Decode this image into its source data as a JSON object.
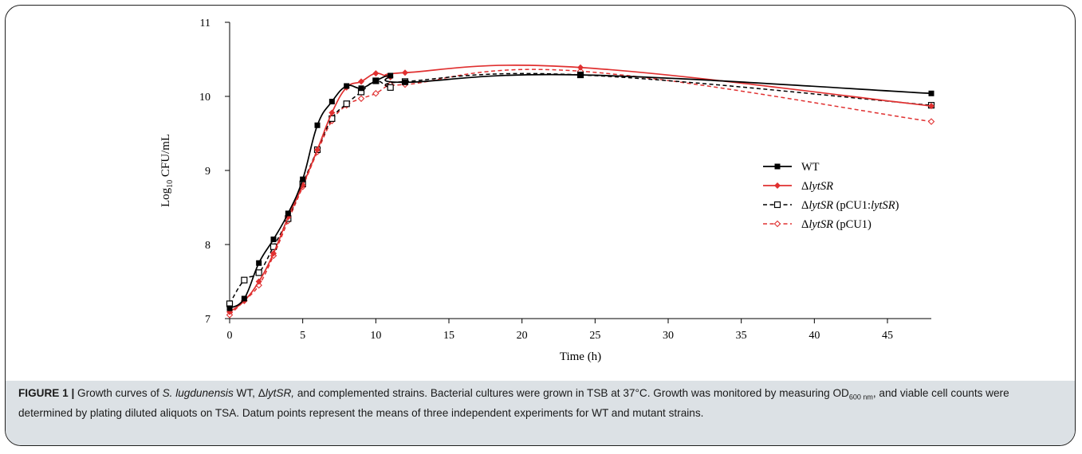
{
  "chart_data": {
    "type": "line",
    "title": "",
    "xlabel": "Time (h)",
    "ylabel": {
      "prefix": "Log",
      "sub": "10",
      "suffix": " CFU/mL"
    },
    "xlim": [
      0,
      48
    ],
    "ylim": [
      7,
      11
    ],
    "xticks": [
      0,
      5,
      10,
      15,
      20,
      25,
      30,
      35,
      40,
      45
    ],
    "yticks": [
      7,
      8,
      9,
      10,
      11
    ],
    "grid": false,
    "legend_position": "center-right",
    "series": [
      {
        "name": "WT",
        "name_parts": [
          {
            "t": "WT",
            "i": false
          }
        ],
        "color": "#000000",
        "dash": "solid",
        "marker": "square-filled",
        "x": [
          0,
          1,
          2,
          3,
          4,
          5,
          6,
          7,
          8,
          9,
          10,
          11,
          12,
          24,
          48
        ],
        "y": [
          7.14,
          7.27,
          7.75,
          8.07,
          8.42,
          8.88,
          9.61,
          9.93,
          10.14,
          10.11,
          10.21,
          10.28,
          10.19,
          10.29,
          10.04
        ]
      },
      {
        "name": "ΔlytSR",
        "name_parts": [
          {
            "t": "Δ",
            "i": false
          },
          {
            "t": "lytSR",
            "i": true
          }
        ],
        "color": "#e03030",
        "dash": "solid",
        "marker": "diamond-filled",
        "x": [
          0,
          1,
          2,
          3,
          4,
          5,
          6,
          7,
          8,
          9,
          10,
          11,
          12,
          24,
          48
        ],
        "y": [
          7.09,
          7.24,
          7.5,
          7.88,
          8.37,
          8.8,
          9.28,
          9.78,
          10.12,
          10.2,
          10.31,
          10.26,
          10.32,
          10.39,
          9.87
        ]
      },
      {
        "name": "ΔlytSR (pCU1:lytSR)",
        "name_parts": [
          {
            "t": "Δ",
            "i": false
          },
          {
            "t": "lytSR",
            "i": true
          },
          {
            "t": " (pCU1:",
            "i": false
          },
          {
            "t": "lytSR",
            "i": true
          },
          {
            "t": ")",
            "i": false
          }
        ],
        "color": "#000000",
        "dash": "dashed",
        "marker": "square-open",
        "x": [
          0,
          1,
          2,
          3,
          4,
          5,
          6,
          7,
          8,
          9,
          10,
          11,
          12,
          24,
          48
        ],
        "y": [
          7.2,
          7.52,
          7.62,
          7.97,
          8.35,
          8.82,
          9.28,
          9.7,
          9.9,
          10.06,
          10.21,
          10.12,
          10.2,
          10.29,
          9.88
        ]
      },
      {
        "name": "ΔlytSR (pCU1)",
        "name_parts": [
          {
            "t": "Δ",
            "i": false
          },
          {
            "t": "lytSR",
            "i": true
          },
          {
            "t": " (pCU1)",
            "i": false
          }
        ],
        "color": "#e03030",
        "dash": "dashed",
        "marker": "diamond-open",
        "x": [
          0,
          1,
          2,
          3,
          4,
          5,
          6,
          7,
          8,
          9,
          10,
          11,
          12,
          24,
          48
        ],
        "y": [
          7.05,
          7.24,
          7.45,
          7.85,
          8.32,
          8.78,
          9.25,
          9.67,
          9.88,
          9.97,
          10.04,
          10.16,
          10.16,
          10.34,
          9.66
        ]
      }
    ]
  },
  "caption": {
    "label": "FIGURE 1 |",
    "parts": [
      {
        "t": " Growth curves of ",
        "i": false
      },
      {
        "t": "S. lugdunensis",
        "i": true
      },
      {
        "t": " WT, Δ",
        "i": false
      },
      {
        "t": "lytSR,",
        "i": true
      },
      {
        "t": " and complemented strains. Bacterial cultures were grown in TSB at 37°C. Growth was monitored by measuring OD",
        "i": false
      },
      {
        "t": "600 nm",
        "i": false,
        "sub": true
      },
      {
        "t": ", and viable cell counts were determined by plating diluted aliquots on TSA. Datum points represent the means of three independent experiments for WT and mutant strains.",
        "i": false
      }
    ]
  }
}
